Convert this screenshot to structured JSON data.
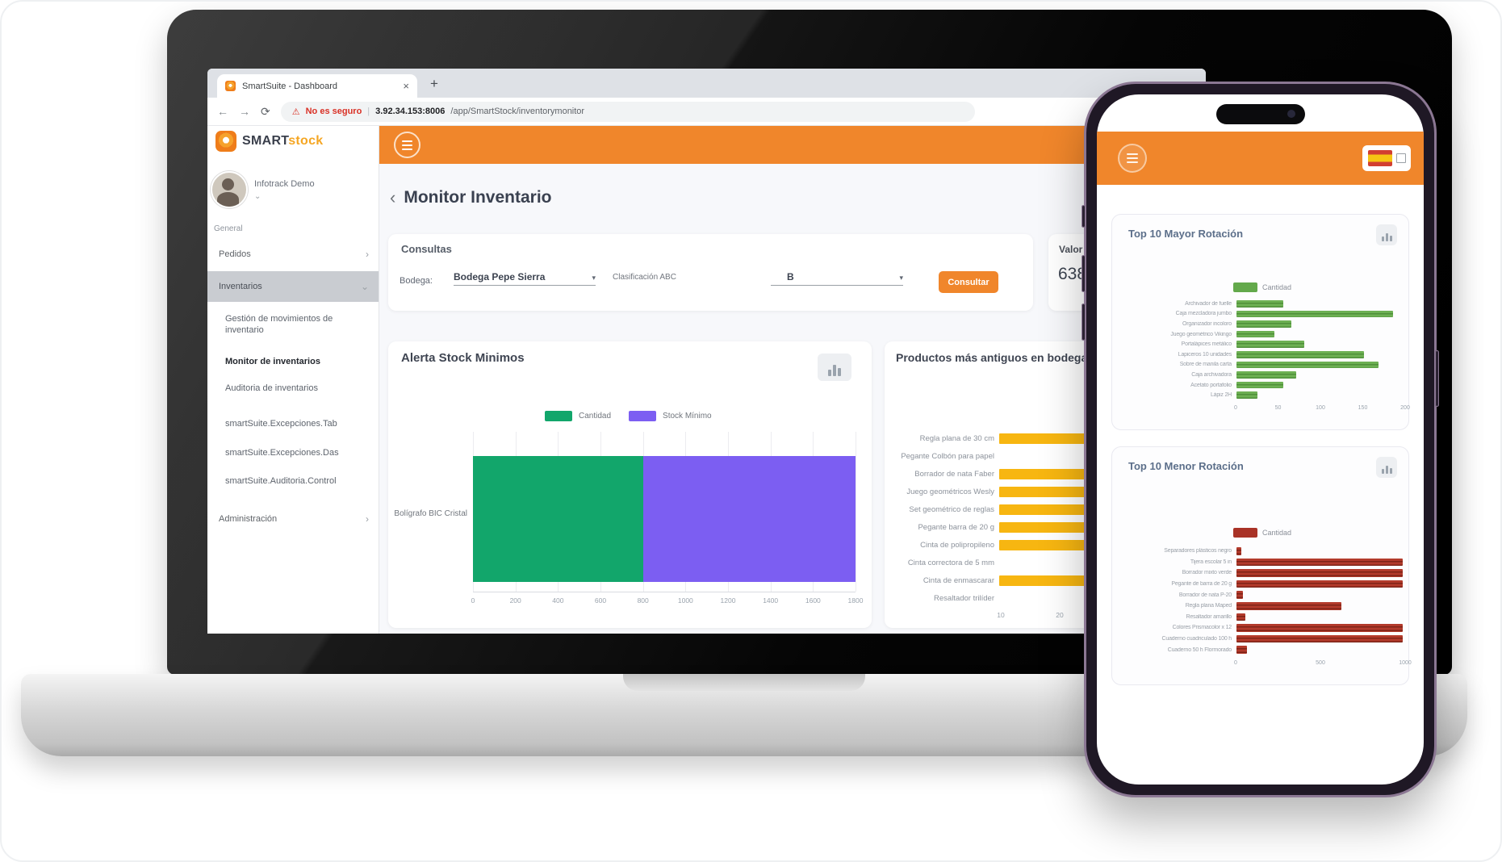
{
  "theme": {
    "orange": "#f0862b",
    "green": "#12a66b",
    "purple": "#7c5ef2",
    "yellow": "#f7b611",
    "phone_green": "#63a94b",
    "phone_red": "#a93226",
    "warning_red": "#d93025"
  },
  "browser": {
    "tab_title": "SmartSuite - Dashboard",
    "tab_close": "×",
    "new_tab_button": "+",
    "back_icon": "←",
    "forward_icon": "→",
    "refresh_icon": "⟳",
    "warning_icon": "⚠",
    "security_warning": "No es seguro",
    "url_host": "3.92.34.153:8006",
    "url_path": "/app/SmartStock/inventorymonitor"
  },
  "sidebar": {
    "logo_primary": "SMART",
    "logo_secondary": "stock",
    "user_name": "Infotrack Demo",
    "user_caret": "⌄",
    "section_label": "General",
    "pedidos_label": "Pedidos",
    "pedidos_chevron": "›",
    "inventarios_label": "Inventarios",
    "inventarios_caret": "⌄",
    "submenu": [
      "Gestión de movimientos de inventario",
      "Monitor de inventarios",
      "Auditoria de inventarios",
      "smartSuite.Excepciones.Tab",
      "smartSuite.Excepciones.Das",
      "smartSuite.Auditoria.Control"
    ],
    "administracion_label": "Administración",
    "administracion_chevron": "›"
  },
  "page_header": {
    "back_icon": "‹",
    "title": "Monitor Inventario"
  },
  "consultas": {
    "title": "Consultas",
    "bodega_label": "Bodega:",
    "bodega_value": "Bodega Pepe Sierra",
    "caret": "▾",
    "clasificacion_label": "Clasificación ABC",
    "clasificacion_value": "B",
    "consultar_button": "Consultar"
  },
  "valor_card": {
    "label": "Valor",
    "value": "638"
  },
  "chart_data": [
    {
      "id": "alerta_stock_minimos",
      "type": "bar",
      "orientation": "horizontal",
      "stacked": true,
      "title": "Alerta Stock Minimos",
      "categories": [
        "Bolígrafo BIC Cristal"
      ],
      "series": [
        {
          "name": "Cantidad",
          "color": "#12a66b",
          "values": [
            800
          ]
        },
        {
          "name": "Stock Mínimo",
          "color": "#7c5ef2",
          "values": [
            1000
          ]
        }
      ],
      "xlim": [
        0,
        1800
      ],
      "xticks": [
        "0",
        "200",
        "400",
        "600",
        "800",
        "1000",
        "1200",
        "1400",
        "1600",
        "1800"
      ],
      "legend_position": "top"
    },
    {
      "id": "productos_mas_antiguos",
      "type": "bar",
      "orientation": "horizontal",
      "title": "Productos más antiguos en bodega",
      "categories": [
        "Regla plana de 30 cm",
        "Pegante Colbón para papel",
        "Borrador de nata Faber",
        "Juego geométricos Wesly",
        "Set geométrico de reglas",
        "Pegante barra de 20 g",
        "Cinta de polipropileno",
        "Cinta correctora de 5 mm",
        "Cinta de enmascarar",
        "Resaltador trilíder"
      ],
      "values": [
        30,
        0,
        28,
        27,
        26,
        27,
        25,
        0,
        26,
        0
      ],
      "color": "#f7b611",
      "xticks_visible": [
        "10",
        "20"
      ]
    },
    {
      "id": "top10_mayor_rotacion",
      "type": "bar",
      "orientation": "horizontal",
      "title": "Top 10 Mayor Rotación",
      "legend": "Cantidad",
      "color": "#63a94b",
      "categories": [
        "Archivador de fuelle",
        "Caja mezcladora jumbo",
        "Organizador incoloro",
        "Juego geométrico Vikingo",
        "Portalápices metálico",
        "Lapiceros 10 unidades",
        "Sobre de manila carta",
        "Caja archivadora",
        "Acetato portafolio",
        "Lápiz 2H"
      ],
      "values": [
        55,
        185,
        65,
        45,
        80,
        150,
        168,
        70,
        55,
        25
      ],
      "xlim": [
        0,
        200
      ],
      "xticks": [
        "0",
        "50",
        "100",
        "150",
        "200"
      ]
    },
    {
      "id": "top10_menor_rotacion",
      "type": "bar",
      "orientation": "horizontal",
      "title": "Top 10 Menor Rotación",
      "legend": "Cantidad",
      "color": "#a93226",
      "categories": [
        "Separadores plásticos negro",
        "Tijera escolar 5 in",
        "Borrador mixto verde",
        "Pegante de barra de 20 g",
        "Borrador de nata P-20",
        "Regla plana Maped",
        "Resaltador amarillo",
        "Colores Prismacolor x 12",
        "Cuaderno cuadriculado 100 h",
        "Cuaderno 50 h Flormorado"
      ],
      "values": [
        30,
        980,
        980,
        980,
        40,
        620,
        50,
        980,
        980,
        60
      ],
      "xlim": [
        0,
        1000
      ],
      "xticks": [
        "0",
        "500",
        "1000"
      ]
    }
  ]
}
